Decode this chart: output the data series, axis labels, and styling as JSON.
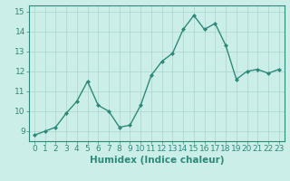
{
  "x": [
    0,
    1,
    2,
    3,
    4,
    5,
    6,
    7,
    8,
    9,
    10,
    11,
    12,
    13,
    14,
    15,
    16,
    17,
    18,
    19,
    20,
    21,
    22,
    23
  ],
  "y": [
    8.8,
    9.0,
    9.2,
    9.9,
    10.5,
    11.5,
    10.3,
    10.0,
    9.2,
    9.3,
    10.3,
    11.8,
    12.5,
    12.9,
    14.1,
    14.8,
    14.1,
    14.4,
    13.3,
    11.6,
    12.0,
    12.1,
    11.9,
    12.1
  ],
  "line_color": "#2d8a7a",
  "marker": "D",
  "marker_size": 2.0,
  "bg_color": "#cceee8",
  "grid_color": "#aad4cc",
  "xlabel": "Humidex (Indice chaleur)",
  "ylim": [
    8.5,
    15.3
  ],
  "yticks": [
    9,
    10,
    11,
    12,
    13,
    14,
    15
  ],
  "xticks": [
    0,
    1,
    2,
    3,
    4,
    5,
    6,
    7,
    8,
    9,
    10,
    11,
    12,
    13,
    14,
    15,
    16,
    17,
    18,
    19,
    20,
    21,
    22,
    23
  ],
  "axis_color": "#2d8a7a",
  "tick_color": "#2d8a7a",
  "xlabel_fontsize": 7.5,
  "tick_fontsize": 6.5,
  "linewidth": 1.0
}
